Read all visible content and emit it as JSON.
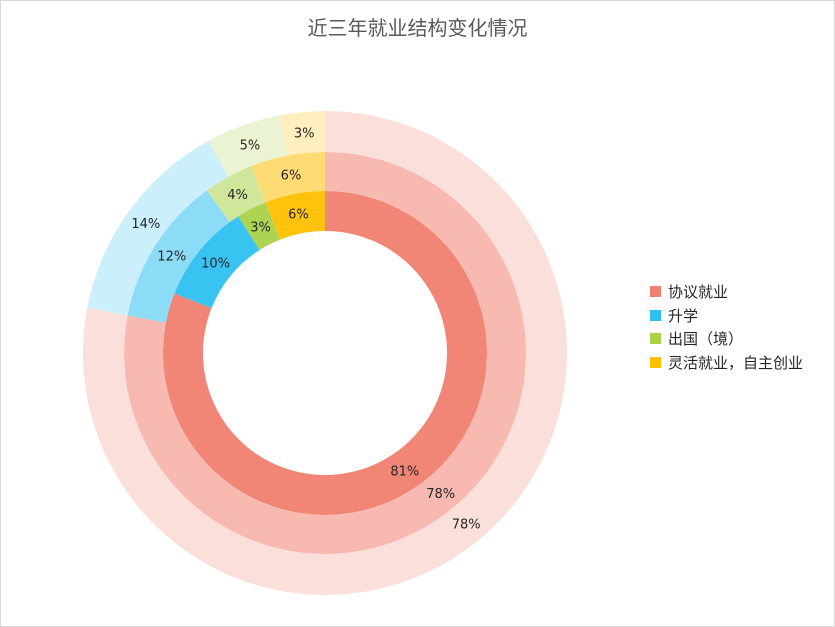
{
  "chart_data": {
    "type": "donut",
    "title": "近三年就业结构变化情况",
    "categories": [
      "协议就业",
      "升学",
      "出国（境）",
      "灵活就业，自主创业"
    ],
    "colors": [
      "#f08070",
      "#2ec0f0",
      "#a9d14a",
      "#ffc000"
    ],
    "rings": [
      {
        "values": [
          81,
          10,
          3,
          6
        ],
        "labels": [
          "81%",
          "10%",
          "3%",
          "6%"
        ]
      },
      {
        "values": [
          78,
          12,
          4,
          6
        ],
        "labels": [
          "78%",
          "12%",
          "4%",
          "6%"
        ]
      },
      {
        "values": [
          78,
          14,
          5,
          3
        ],
        "labels": [
          "78%",
          "14%",
          "5%",
          "3%"
        ]
      }
    ],
    "legend_position": "right"
  }
}
